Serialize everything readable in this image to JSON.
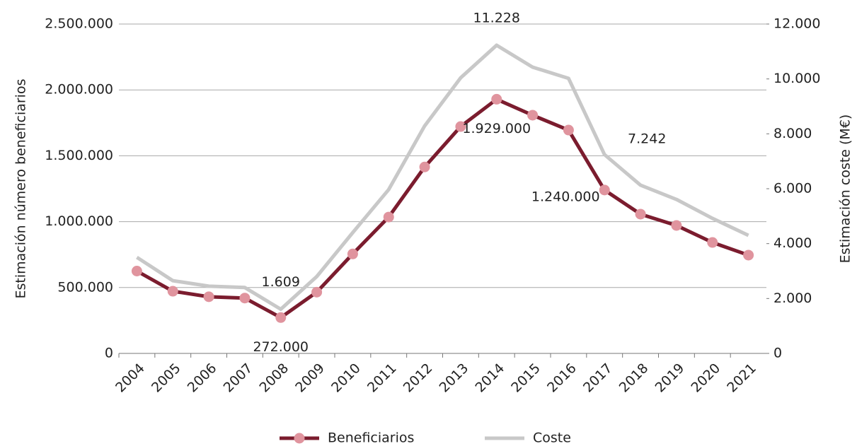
{
  "chart_data": {
    "type": "line",
    "categories": [
      "2004",
      "2005",
      "2006",
      "2007",
      "2008",
      "2009",
      "2010",
      "2011",
      "2012",
      "2013",
      "2014",
      "2015",
      "2016",
      "2017",
      "2018",
      "2019",
      "2020",
      "2021"
    ],
    "y_label": "Estimación número beneficiarios",
    "y2_label": "Estimación coste (M€)",
    "ylim": [
      0,
      2500000
    ],
    "yticks": [
      0,
      {
        "value": 500000,
        "label": "500.000"
      },
      {
        "value": 1000000,
        "label": "1.000.000"
      },
      {
        "value": 1500000,
        "label": "1.500.000"
      },
      {
        "value": 2000000,
        "label": "2.000.000"
      },
      {
        "value": 2500000,
        "label": "2.500.000"
      }
    ],
    "y2lim": [
      0,
      12000
    ],
    "y2ticks": [
      0,
      {
        "value": 2000,
        "label": "2.000"
      },
      {
        "value": 4000,
        "label": "4.000"
      },
      {
        "value": 6000,
        "label": "6.000"
      },
      {
        "value": 8000,
        "label": "8.000"
      },
      {
        "value": 10000,
        "label": "10.000"
      },
      {
        "value": 12000,
        "label": "12.000"
      }
    ],
    "grid": true,
    "legend": "bottom",
    "series": [
      {
        "name": "Beneficiarios",
        "color": "#7b1c2e",
        "marker_color": "#e0949e",
        "markers": true,
        "values": [
          625000,
          472000,
          430000,
          420000,
          272000,
          465000,
          755000,
          1035000,
          1415000,
          1722000,
          1929000,
          1808000,
          1695000,
          1240000,
          1057000,
          971000,
          842000,
          746000
        ],
        "value_labels": [
          null,
          null,
          null,
          null,
          "272.000",
          null,
          null,
          null,
          null,
          null,
          "1.929.000",
          null,
          null,
          "1.240.000",
          null,
          null,
          null,
          null
        ]
      },
      {
        "name": "Coste",
        "color": "#c8c8c8",
        "markers": false,
        "axis": "y2",
        "values": [
          3500,
          2650,
          2450,
          2400,
          1609,
          2800,
          4400,
          5970,
          8290,
          10040,
          11228,
          10430,
          10020,
          7242,
          6130,
          5610,
          4920,
          4300
        ],
        "value_labels": [
          null,
          null,
          null,
          null,
          "1.609",
          null,
          null,
          null,
          null,
          null,
          "11.228",
          null,
          null,
          "7.242",
          null,
          null,
          null,
          null
        ]
      }
    ]
  }
}
